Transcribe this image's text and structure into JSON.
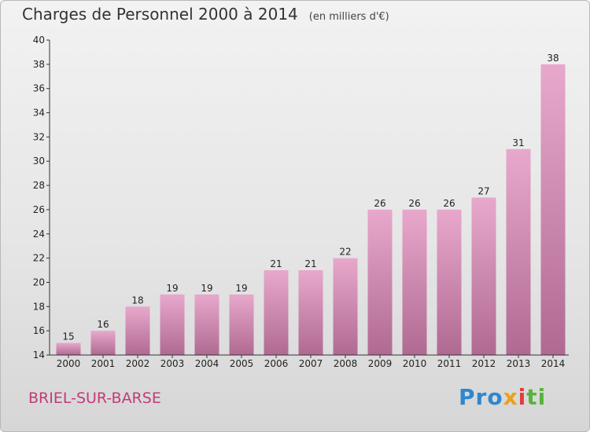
{
  "title": "Charges de Personnel 2000 à 2014",
  "unit_note": "(en milliers d'€)",
  "commune": "BRIEL-SUR-BARSE",
  "logo": {
    "p1": "Pro",
    "p2": "x",
    "p3": "i",
    "p4": "ti"
  },
  "colors": {
    "bar_top": "#e8a8cc",
    "bar_bottom": "#b06a92",
    "commune": "#c23b7a"
  },
  "chart_data": {
    "type": "bar",
    "title": "Charges de Personnel 2000 à 2014",
    "subtitle": "(en milliers d'€)",
    "categories": [
      "2000",
      "2001",
      "2002",
      "2003",
      "2004",
      "2005",
      "2006",
      "2007",
      "2008",
      "2009",
      "2010",
      "2011",
      "2012",
      "2013",
      "2014"
    ],
    "values": [
      15,
      16,
      18,
      19,
      19,
      19,
      21,
      21,
      22,
      26,
      26,
      26,
      27,
      31,
      38
    ],
    "ylim": [
      14,
      40
    ],
    "yticks": [
      14,
      16,
      18,
      20,
      22,
      24,
      26,
      28,
      30,
      32,
      34,
      36,
      38,
      40
    ],
    "grid": false,
    "data_labels": true
  }
}
